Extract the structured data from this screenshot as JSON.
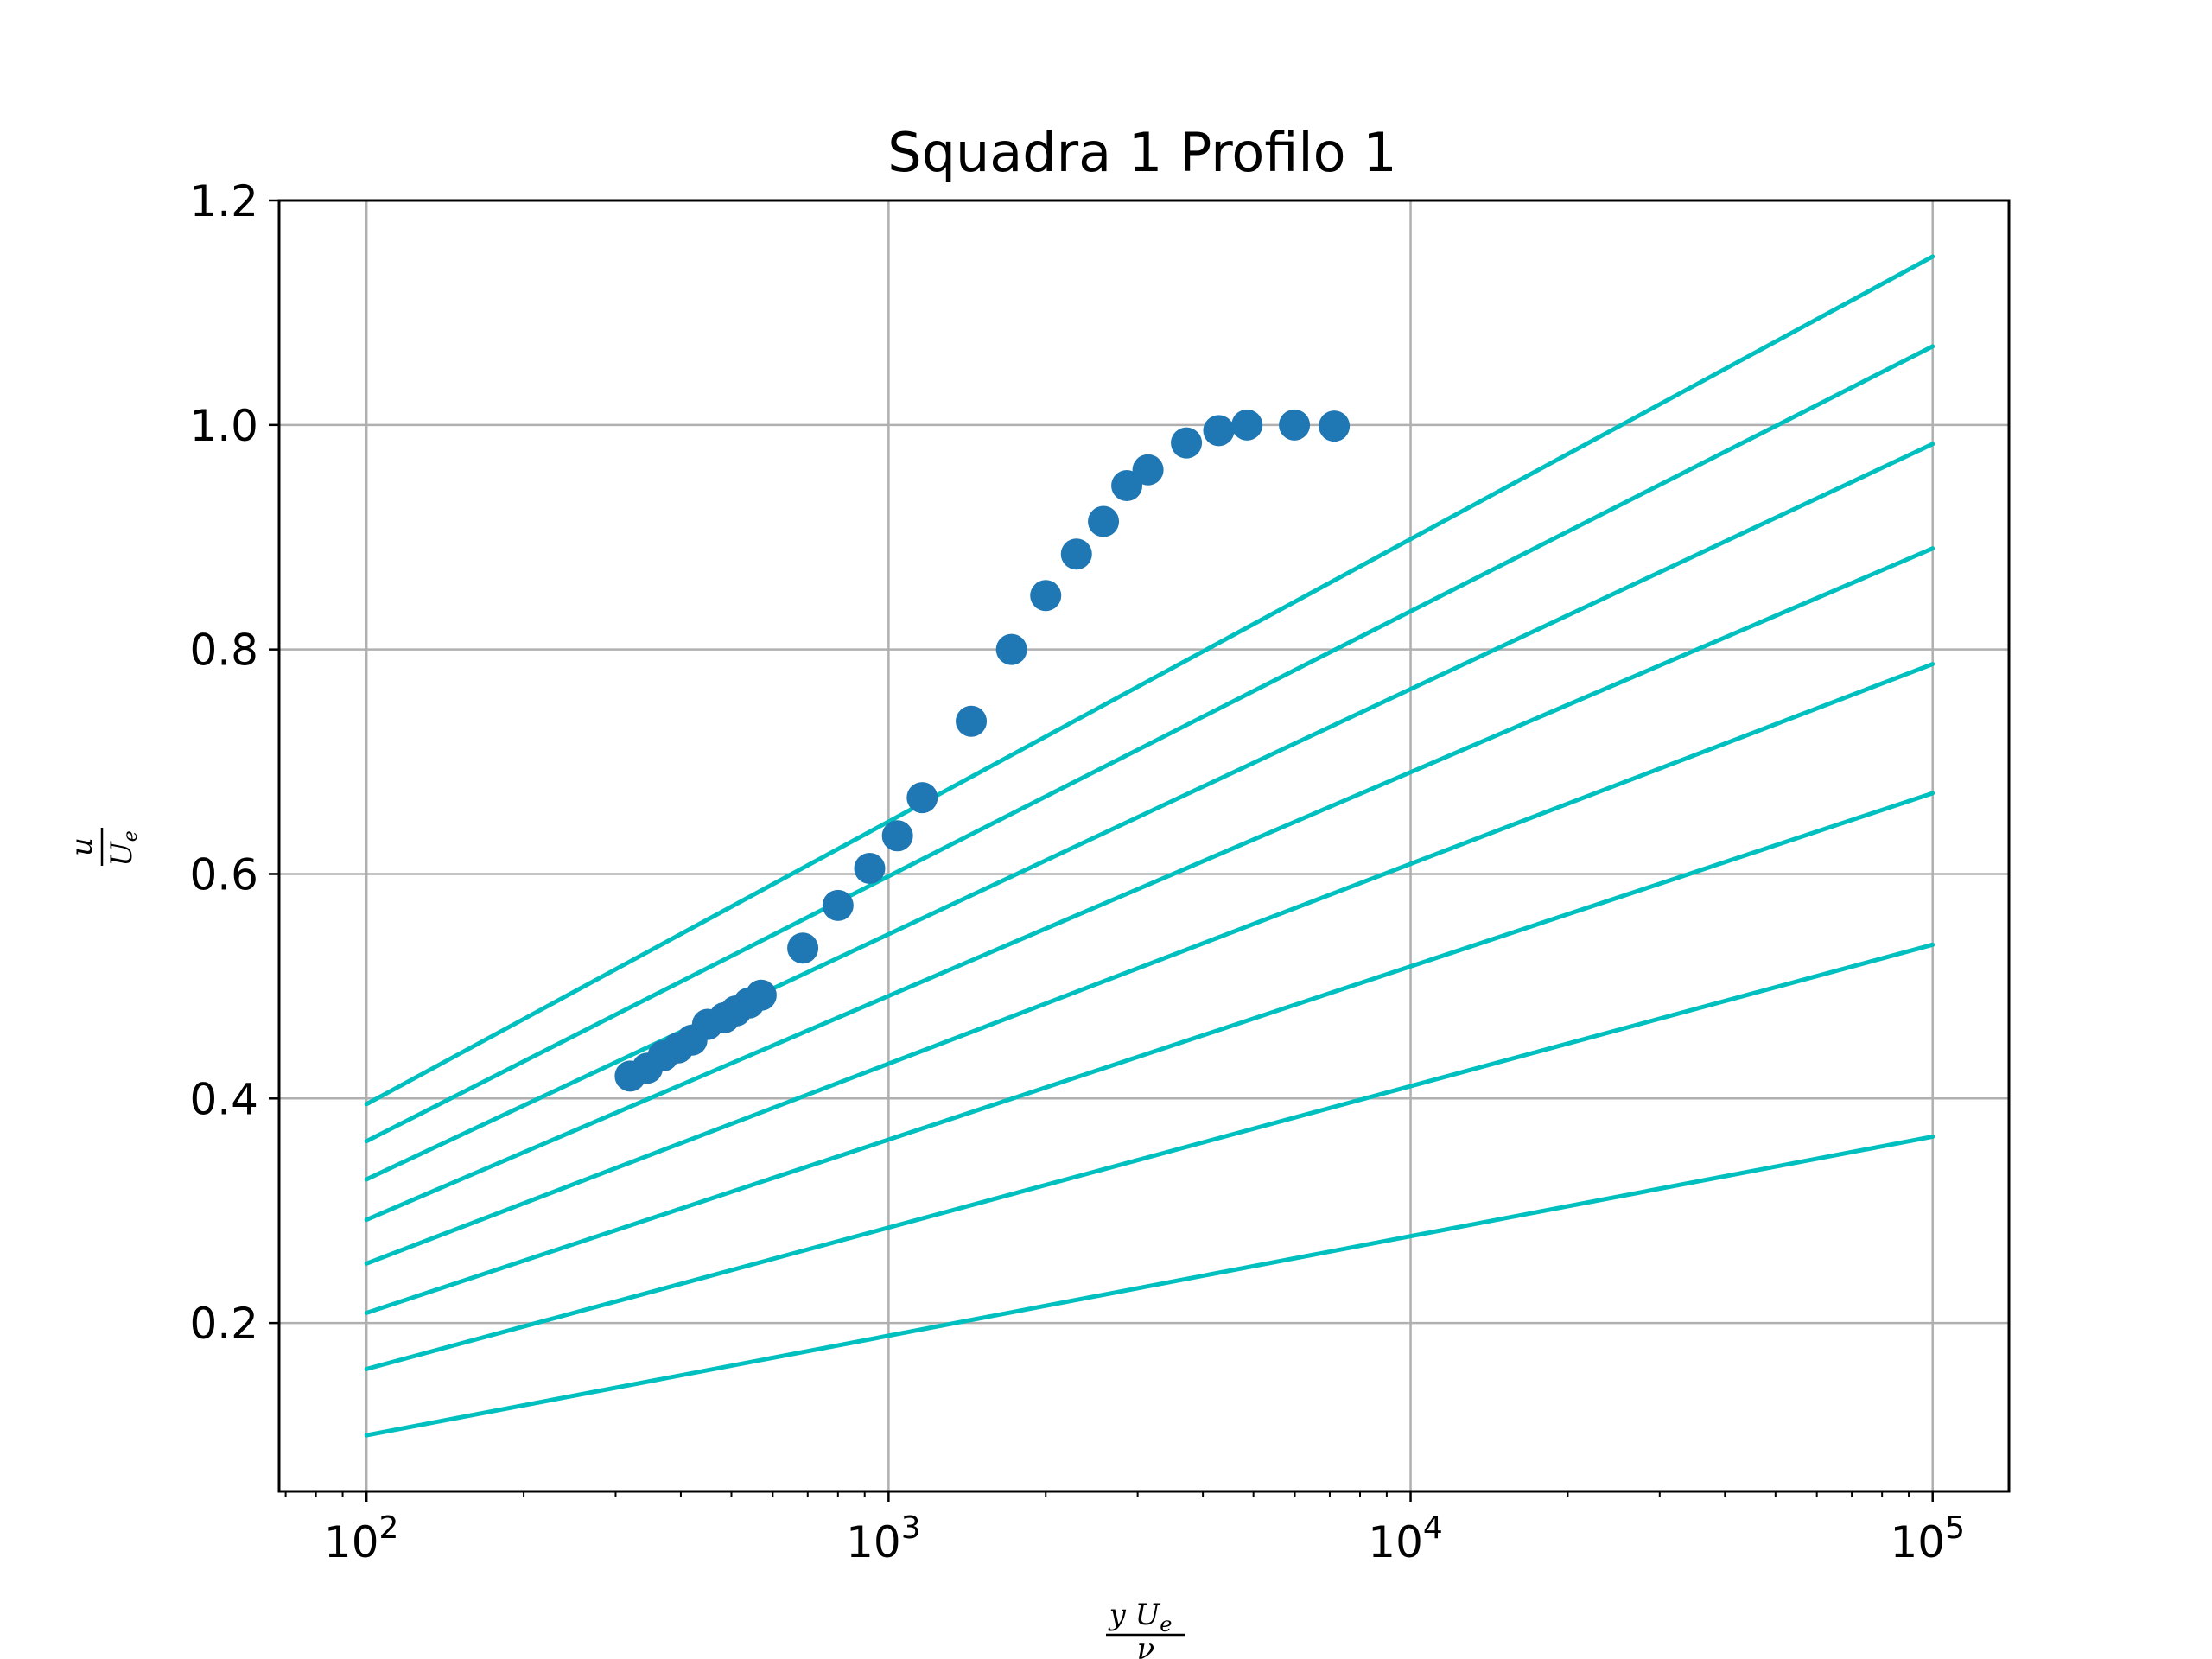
{
  "chart_data": {
    "type": "scatter",
    "title": "Squadra 1 Profilo 1",
    "xscale": "log",
    "xlim": [
      68,
      140000
    ],
    "ylim": [
      0.05,
      1.2
    ],
    "grid": true,
    "x_ticks": [
      {
        "base": "10",
        "exp": "2",
        "value": 100
      },
      {
        "base": "10",
        "exp": "3",
        "value": 1000
      },
      {
        "base": "10",
        "exp": "4",
        "value": 10000
      },
      {
        "base": "10",
        "exp": "5",
        "value": 100000
      }
    ],
    "y_ticks": [
      "0.2",
      "0.4",
      "0.6",
      "0.8",
      "1.0",
      "1.2"
    ],
    "xlabel": {
      "numerator": "y U",
      "numerator_sub": "e",
      "denominator": "ν"
    },
    "ylabel": {
      "numerator": "u",
      "denominator": "U",
      "denominator_sub": "e"
    },
    "points_color": "#1f77b4",
    "lines_color": "#00bfbf",
    "points": [
      {
        "x": 320,
        "y": 0.42
      },
      {
        "x": 345,
        "y": 0.427
      },
      {
        "x": 370,
        "y": 0.438
      },
      {
        "x": 395,
        "y": 0.445
      },
      {
        "x": 420,
        "y": 0.452
      },
      {
        "x": 450,
        "y": 0.466
      },
      {
        "x": 485,
        "y": 0.472
      },
      {
        "x": 510,
        "y": 0.478
      },
      {
        "x": 540,
        "y": 0.485
      },
      {
        "x": 570,
        "y": 0.492
      },
      {
        "x": 685,
        "y": 0.534
      },
      {
        "x": 800,
        "y": 0.572
      },
      {
        "x": 920,
        "y": 0.605
      },
      {
        "x": 1040,
        "y": 0.634
      },
      {
        "x": 1160,
        "y": 0.668
      },
      {
        "x": 1440,
        "y": 0.736
      },
      {
        "x": 1720,
        "y": 0.8
      },
      {
        "x": 2000,
        "y": 0.848
      },
      {
        "x": 2290,
        "y": 0.885
      },
      {
        "x": 2580,
        "y": 0.914
      },
      {
        "x": 2860,
        "y": 0.946
      },
      {
        "x": 3140,
        "y": 0.96
      },
      {
        "x": 3720,
        "y": 0.984
      },
      {
        "x": 4290,
        "y": 0.995
      },
      {
        "x": 4860,
        "y": 1.0
      },
      {
        "x": 5990,
        "y": 1.0
      },
      {
        "x": 7140,
        "y": 0.999
      }
    ],
    "lines": [
      {
        "x": [
          100,
          100000
        ],
        "y": [
          0.395,
          1.15
        ]
      },
      {
        "x": [
          100,
          100000
        ],
        "y": [
          0.362,
          1.07
        ]
      },
      {
        "x": [
          100,
          100000
        ],
        "y": [
          0.328,
          0.983
        ]
      },
      {
        "x": [
          100,
          100000
        ],
        "y": [
          0.292,
          0.89
        ]
      },
      {
        "x": [
          100,
          100000
        ],
        "y": [
          0.253,
          0.787
        ]
      },
      {
        "x": [
          100,
          100000
        ],
        "y": [
          0.209,
          0.672
        ]
      },
      {
        "x": [
          100,
          100000
        ],
        "y": [
          0.159,
          0.537
        ]
      },
      {
        "x": [
          100,
          100000
        ],
        "y": [
          0.1,
          0.366
        ]
      }
    ]
  }
}
